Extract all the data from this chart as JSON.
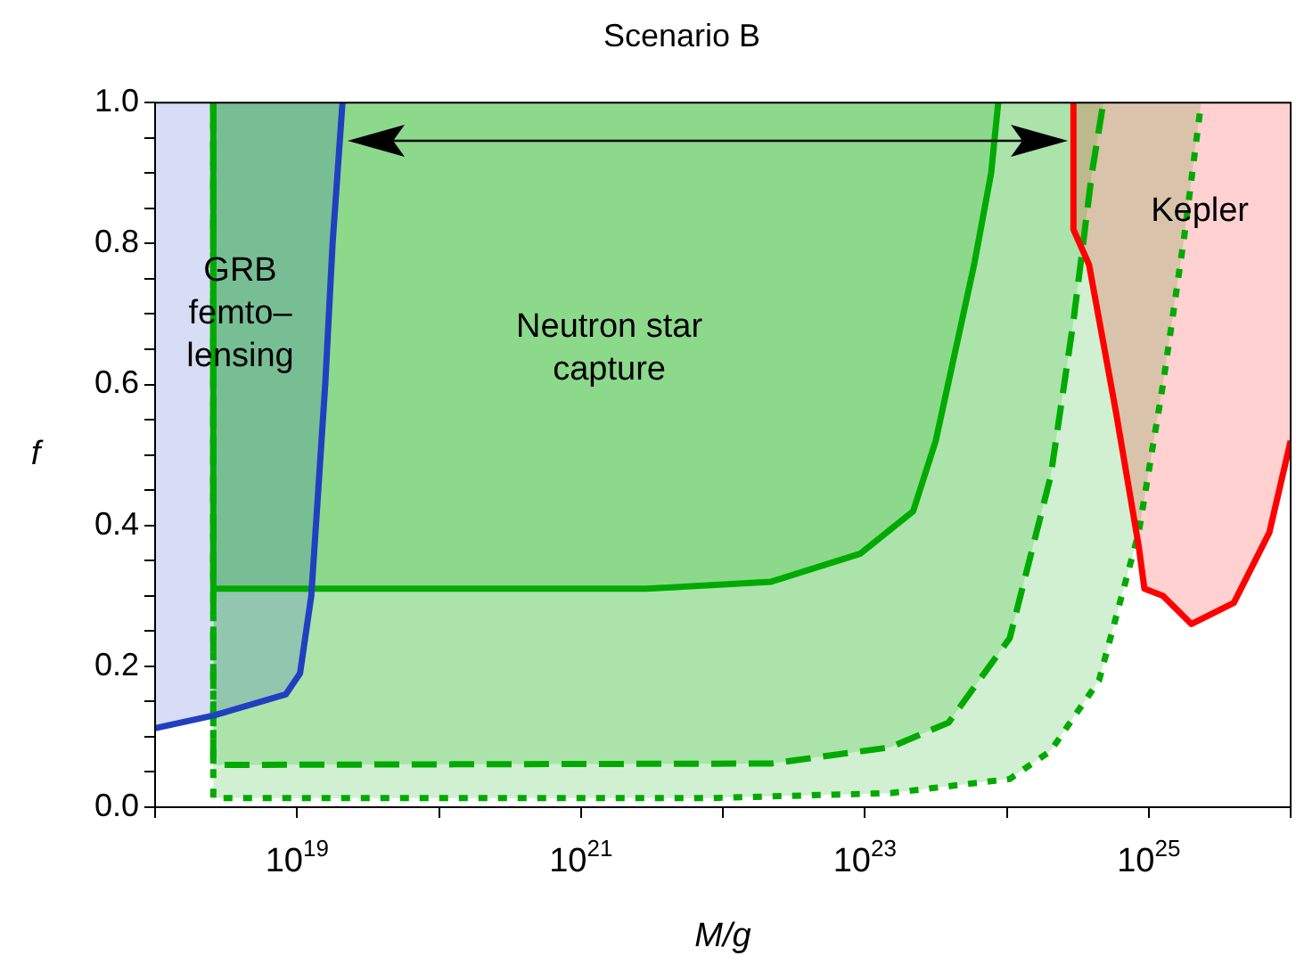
{
  "chart_data": {
    "type": "area",
    "title": "Scenario B",
    "xlabel": "M/g",
    "ylabel": "f",
    "log": "x",
    "marker": "none",
    "xlim": [
      1e+18,
      1e+26
    ],
    "xticks": [
      {
        "value": 1e+18,
        "label": null
      },
      {
        "value": 1e+19,
        "label": "10$^{19}$"
      },
      {
        "value": 1e+20,
        "label": null
      },
      {
        "value": 1e+21,
        "label": "10$^{21}$"
      },
      {
        "value": 1e+22,
        "label": null
      },
      {
        "value": 1e+23,
        "label": "10$^{23}$"
      },
      {
        "value": 1e+24,
        "label": null
      },
      {
        "value": 1e+25,
        "label": "10$^{25}$"
      },
      {
        "value": 1e+26,
        "label": null
      }
    ],
    "ylim": [
      0,
      1
    ],
    "yticks": [
      {
        "value": 0,
        "label": "0.0"
      },
      {
        "value": 0.05,
        "label": null
      },
      {
        "value": 0.1,
        "label": null
      },
      {
        "value": 0.15,
        "label": null
      },
      {
        "value": 0.2,
        "label": "0.2"
      },
      {
        "value": 0.25,
        "label": null
      },
      {
        "value": 0.3,
        "label": null
      },
      {
        "value": 0.35,
        "label": null
      },
      {
        "value": 0.4,
        "label": "0.4"
      },
      {
        "value": 0.45,
        "label": null
      },
      {
        "value": 0.5,
        "label": null
      },
      {
        "value": 0.55,
        "label": null
      },
      {
        "value": 0.6,
        "label": "0.6"
      },
      {
        "value": 0.65,
        "label": null
      },
      {
        "value": 0.7,
        "label": null
      },
      {
        "value": 0.75,
        "label": null
      },
      {
        "value": 0.8,
        "label": "0.8"
      },
      {
        "value": 0.85,
        "label": null
      },
      {
        "value": 0.9,
        "label": null
      },
      {
        "value": 0.95,
        "label": null
      },
      {
        "value": 1,
        "label": "1.0"
      }
    ],
    "series": [
      {
        "color": "#00aa00",
        "line_style": "dotted",
        "x": [
          2.57e+18,
          2.57e+18,
          8.32e+21,
          1.51e+23,
          1.05e+24,
          2.04e+24,
          4.47e+24,
          8.51e+24,
          1.26e+25,
          1.78e+25,
          2.34e+25
        ],
        "values": [
          1.0,
          0.013,
          0.013,
          0.02,
          0.04,
          0.08,
          0.18,
          0.39,
          0.6,
          0.81,
          1.0
        ]
      },
      {
        "color": "#00aa00",
        "line_style": "dashed",
        "x": [
          2.57e+18,
          2.57e+18,
          2.19e+22,
          1.51e+23,
          3.89e+23,
          1.05e+24,
          2.04e+24,
          2.95e+24,
          3.98e+24,
          4.79e+24
        ],
        "values": [
          1.0,
          0.06,
          0.062,
          0.085,
          0.12,
          0.24,
          0.47,
          0.69,
          0.9,
          1.0
        ]
      },
      {
        "color": "#00aa00",
        "line_style": "solid",
        "x": [
          2.57e+18,
          2.57e+18,
          2.88e+21,
          2.19e+22,
          9.33e+22,
          2.19e+23,
          3.16e+23,
          5.89e+23,
          7.76e+23,
          8.71e+23
        ],
        "values": [
          1.0,
          0.31,
          0.31,
          0.32,
          0.36,
          0.42,
          0.52,
          0.77,
          0.9,
          1.0
        ]
      },
      {
        "color": "#2040c0",
        "line_style": "solid",
        "x": [
          1e+18,
          1e+18,
          2.57e+18,
          8.32e+18,
          1.05e+19,
          1.26e+19,
          1.58e+19,
          1.78e+19,
          2.09e+19
        ],
        "values": [
          1.0,
          0.112,
          0.13,
          0.16,
          0.19,
          0.3,
          0.6,
          0.8,
          1.0
        ]
      },
      {
        "color": "#ff0000",
        "line_style": "solid",
        "x": [
          2.95e+24,
          2.95e+24,
          3.8e+24,
          5.89e+24,
          8.51e+24,
          9.33e+24,
          1.26e+25,
          2e+25,
          3.98e+25,
          7.08e+25,
          1e+26,
          1e+26
        ],
        "values": [
          1.0,
          0.82,
          0.77,
          0.56,
          0.37,
          0.31,
          0.3,
          0.26,
          0.29,
          0.39,
          0.52,
          1.0
        ]
      }
    ],
    "annotations": [
      "GRB\nfemto–\nlensing",
      "Neutron star\ncapture",
      "Kepler"
    ]
  }
}
